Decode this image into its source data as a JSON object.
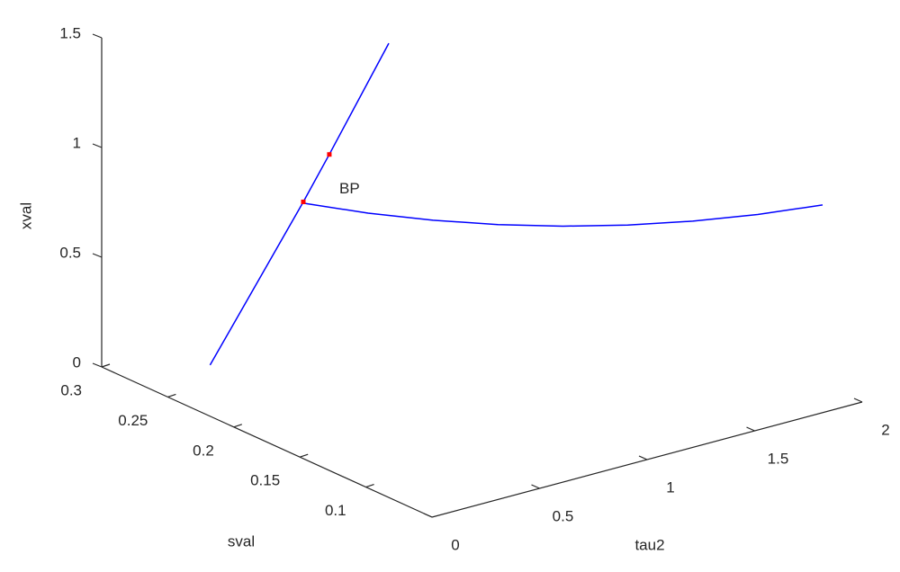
{
  "chart_data": {
    "type": "line3d",
    "xlabel": "tau2",
    "ylabel": "sval",
    "zlabel": "xval",
    "xlim": [
      0,
      2
    ],
    "ylim": [
      0.05,
      0.3
    ],
    "zlim": [
      0,
      1.5
    ],
    "xticks": [
      0,
      0.5,
      1,
      1.5,
      2
    ],
    "yticks": [
      0.1,
      0.15,
      0.2,
      0.25,
      0.3
    ],
    "zticks": [
      0,
      0.5,
      1,
      1.5
    ],
    "series": [
      {
        "color": "#0000ff",
        "x": [
          0,
          0,
          0,
          0
        ],
        "y": [
          0.218,
          0.1474,
          0.1277,
          0.0827
        ],
        "z": [
          0.233,
          1.17,
          1.44,
          2.07
        ]
      },
      {
        "color": "#0000ff",
        "x": [
          0,
          0.25,
          0.5,
          0.75,
          1,
          1.25,
          1.5,
          1.75,
          2
        ],
        "y": [
          0.1474,
          0.139,
          0.1306,
          0.1221,
          0.1137,
          0.1053,
          0.0969,
          0.0884,
          0.08
        ],
        "z": [
          1.164,
          1.076,
          1.001,
          0.939,
          0.889,
          0.852,
          0.827,
          0.815,
          0.816
        ]
      }
    ],
    "points": {
      "color": "#ff0000",
      "x": [
        0,
        0
      ],
      "y": [
        0.1474,
        0.1277
      ],
      "z": [
        1.17,
        1.44
      ]
    },
    "annotations": [
      {
        "text": "BP",
        "x": 0,
        "y": 0.1474,
        "z": 1.17
      }
    ]
  }
}
